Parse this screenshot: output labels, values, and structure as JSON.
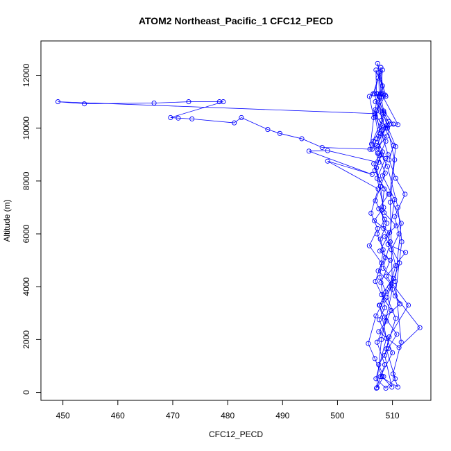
{
  "chart_data": {
    "type": "line",
    "title": "ATOM2 Northeast_Pacific_1 CFC12_PECD",
    "xlabel": "CFC12_PECD",
    "ylabel": "Altitude (m)",
    "xlim": [
      446,
      517
    ],
    "ylim": [
      -300,
      13300
    ],
    "x_ticks": [
      450,
      460,
      470,
      480,
      490,
      500,
      510
    ],
    "y_ticks": [
      0,
      2000,
      4000,
      6000,
      8000,
      10000,
      12000
    ],
    "series_color": "#0000ff",
    "series": [
      {
        "marker": "open-circle",
        "line": true,
        "points": [
          [
            507.2,
            180
          ],
          [
            508.4,
            600
          ],
          [
            507.5,
            1050
          ],
          [
            509.2,
            1650
          ],
          [
            510.8,
            2200
          ],
          [
            508.6,
            2850
          ],
          [
            511.4,
            3350
          ],
          [
            509.5,
            4000
          ],
          [
            510.6,
            4800
          ],
          [
            509.8,
            5400
          ],
          [
            511.2,
            6000
          ],
          [
            510.4,
            6650
          ],
          [
            512.3,
            7500
          ],
          [
            510.6,
            8100
          ],
          [
            509.4,
            8800
          ],
          [
            510.2,
            9350
          ],
          [
            508.5,
            10050
          ],
          [
            511.0,
            10130
          ],
          [
            508.0,
            11300
          ],
          [
            507.3,
            12450
          ],
          [
            508.7,
            11250
          ],
          [
            506.8,
            10500
          ],
          [
            507.5,
            9700
          ],
          [
            506.3,
            9200
          ],
          [
            497.2,
            9270
          ],
          [
            493.5,
            9600
          ],
          [
            489.5,
            9800
          ],
          [
            487.3,
            9950
          ],
          [
            482.5,
            10400
          ],
          [
            481.2,
            10200
          ],
          [
            473.5,
            10350
          ],
          [
            471.0,
            10380
          ],
          [
            469.6,
            10400
          ],
          [
            479.2,
            11000
          ],
          [
            478.5,
            11000
          ],
          [
            472.9,
            11000
          ],
          [
            466.6,
            10950
          ],
          [
            453.9,
            10920
          ],
          [
            449.1,
            11000
          ],
          [
            506.8,
            10550
          ],
          [
            508.2,
            10100
          ],
          [
            506.5,
            9500
          ],
          [
            507.5,
            8700
          ],
          [
            498.2,
            9150
          ],
          [
            494.8,
            9130
          ],
          [
            506.3,
            8250
          ],
          [
            498.2,
            8750
          ],
          [
            507.4,
            7700
          ],
          [
            506.1,
            6780
          ],
          [
            507.3,
            6200
          ],
          [
            505.8,
            5550
          ],
          [
            508.0,
            4900
          ],
          [
            506.9,
            4200
          ],
          [
            508.5,
            3500
          ],
          [
            507.0,
            2900
          ],
          [
            505.6,
            1850
          ],
          [
            506.8,
            1280
          ],
          [
            508.1,
            600
          ],
          [
            509.9,
            200
          ],
          [
            508.6,
            1400
          ],
          [
            509.4,
            2100
          ],
          [
            512.9,
            3300
          ],
          [
            508.9,
            4400
          ],
          [
            512.4,
            5300
          ],
          [
            509.2,
            5600
          ],
          [
            510.4,
            7300
          ],
          [
            508.2,
            8200
          ],
          [
            509.2,
            9000
          ],
          [
            507.9,
            9900
          ],
          [
            508.4,
            10600
          ],
          [
            507.1,
            11300
          ],
          [
            507.0,
            12200
          ],
          [
            508.2,
            11600
          ],
          [
            506.9,
            10450
          ],
          [
            508.8,
            9500
          ],
          [
            507.6,
            8950
          ],
          [
            506.6,
            8650
          ],
          [
            507.6,
            8050
          ],
          [
            509.3,
            7500
          ],
          [
            507.5,
            6950
          ],
          [
            509.0,
            6400
          ],
          [
            507.8,
            5800
          ],
          [
            508.7,
            5100
          ],
          [
            507.4,
            4600
          ],
          [
            509.8,
            4100
          ],
          [
            507.6,
            3300
          ],
          [
            508.9,
            2700
          ],
          [
            507.5,
            2300
          ],
          [
            511.2,
            1700
          ],
          [
            515.0,
            2450
          ],
          [
            510.5,
            3650
          ],
          [
            511.7,
            5700
          ],
          [
            511.0,
            7000
          ],
          [
            509.1,
            8550
          ],
          [
            507.2,
            9350
          ],
          [
            509.3,
            10250
          ],
          [
            507.1,
            10650
          ],
          [
            508.3,
            11300
          ],
          [
            507.9,
            12300
          ],
          [
            506.7,
            11300
          ],
          [
            508.7,
            10000
          ],
          [
            507.3,
            9050
          ],
          [
            508.7,
            8300
          ],
          [
            506.9,
            7250
          ],
          [
            508.6,
            6550
          ],
          [
            507.2,
            6000
          ],
          [
            508.3,
            5400
          ],
          [
            507.7,
            4350
          ],
          [
            508.8,
            3800
          ],
          [
            507.7,
            3300
          ],
          [
            508.9,
            2050
          ],
          [
            507.0,
            520
          ],
          [
            508.8,
            160
          ],
          [
            510.5,
            520
          ],
          [
            508.9,
            1650
          ],
          [
            510.6,
            2800
          ],
          [
            509.0,
            3600
          ],
          [
            511.3,
            4900
          ],
          [
            508.6,
            5900
          ],
          [
            510.7,
            6300
          ],
          [
            508.5,
            6800
          ],
          [
            507.8,
            7800
          ],
          [
            507.1,
            8500
          ],
          [
            508.2,
            9100
          ],
          [
            507.2,
            9600
          ],
          [
            509.5,
            10150
          ],
          [
            508.5,
            10550
          ],
          [
            506.9,
            11000
          ],
          [
            508.8,
            11200
          ],
          [
            507.5,
            12100
          ],
          [
            507.6,
            11200
          ],
          [
            508.0,
            10300
          ],
          [
            506.2,
            9400
          ],
          [
            508.7,
            8850
          ],
          [
            507.2,
            8100
          ],
          [
            508.4,
            7000
          ],
          [
            506.7,
            6500
          ],
          [
            509.5,
            6050
          ],
          [
            507.7,
            5350
          ],
          [
            509.6,
            5000
          ],
          [
            507.9,
            4150
          ],
          [
            508.6,
            3200
          ],
          [
            507.6,
            2750
          ],
          [
            510.0,
            1500
          ],
          [
            507.8,
            600
          ],
          [
            511.0,
            200
          ],
          [
            510.1,
            700
          ],
          [
            511.6,
            1900
          ],
          [
            510.5,
            4200
          ],
          [
            511.6,
            6400
          ],
          [
            509.5,
            7500
          ],
          [
            510.6,
            9300
          ],
          [
            509.0,
            10100
          ],
          [
            507.3,
            11300
          ],
          [
            506.9,
            10700
          ],
          [
            507.8,
            9800
          ],
          [
            509.0,
            9700
          ],
          [
            507.4,
            9300
          ],
          [
            508.0,
            9000
          ],
          [
            506.8,
            8400
          ],
          [
            508.5,
            7700
          ],
          [
            508.1,
            6900
          ],
          [
            508.4,
            6200
          ],
          [
            509.6,
            5700
          ],
          [
            508.3,
            4700
          ],
          [
            510.2,
            4300
          ],
          [
            508.0,
            3700
          ],
          [
            509.8,
            3100
          ],
          [
            507.2,
            1900
          ],
          [
            508.6,
            1050
          ],
          [
            507.1,
            160
          ],
          [
            508.0,
            2000
          ],
          [
            510.0,
            3900
          ],
          [
            509.6,
            7200
          ],
          [
            510.4,
            8800
          ],
          [
            509.1,
            10000
          ],
          [
            510.2,
            10150
          ],
          [
            508.4,
            10650
          ],
          [
            507.8,
            11300
          ],
          [
            508.2,
            12200
          ],
          [
            507.4,
            11900
          ],
          [
            506.5,
            11300
          ],
          [
            505.8,
            11200
          ],
          [
            506.6,
            10400
          ],
          [
            505.9,
            9200
          ]
        ]
      }
    ],
    "grid": false,
    "legend": false
  }
}
